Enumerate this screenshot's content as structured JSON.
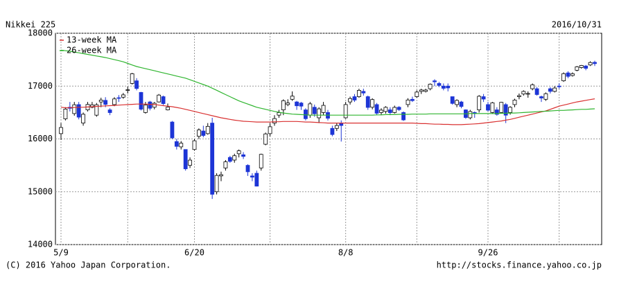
{
  "chart_data": {
    "type": "candlestick",
    "title": "Nikkei 225",
    "date": "2016/10/31",
    "footer_left": "(C) 2016 Yahoo Japan Corporation.",
    "footer_right": "http://stocks.finance.yahoo.co.jp",
    "categories": [
      "5/9",
      null,
      null,
      null,
      null,
      null,
      null,
      null,
      null,
      null,
      null,
      null,
      null,
      null,
      null,
      null,
      null,
      null,
      null,
      null,
      null,
      null,
      null,
      null,
      null,
      null,
      null,
      null,
      null,
      null,
      "6/20",
      null,
      null,
      null,
      null,
      null,
      null,
      null,
      null,
      null,
      null,
      null,
      null,
      null,
      null,
      null,
      null,
      null,
      null,
      null,
      null,
      null,
      null,
      null,
      null,
      null,
      null,
      null,
      null,
      null,
      null,
      null,
      null,
      null,
      "8/8",
      null,
      null,
      null,
      null,
      null,
      null,
      null,
      null,
      null,
      null,
      null,
      null,
      null,
      null,
      null,
      null,
      null,
      null,
      null,
      null,
      null,
      null,
      null,
      null,
      null,
      null,
      null,
      null,
      null,
      null,
      null,
      "9/26",
      null,
      null,
      null,
      null,
      null,
      null,
      null,
      null,
      null,
      null,
      null,
      null,
      null,
      null,
      null,
      null,
      null,
      null,
      null,
      null,
      null,
      null,
      null,
      null
    ],
    "open": [
      16100,
      16380,
      16600,
      16480,
      16650,
      16300,
      16550,
      16600,
      16450,
      16700,
      16730,
      16550,
      16650,
      16780,
      16790,
      16920,
      17050,
      17100,
      16880,
      16500,
      16700,
      16600,
      16700,
      16800,
      16550,
      16320,
      15950,
      15850,
      15800,
      15500,
      15800,
      16050,
      16150,
      16100,
      16300,
      15000,
      15300,
      15450,
      15650,
      15600,
      15720,
      15700,
      15500,
      15300,
      15350,
      15450,
      15900,
      16100,
      16300,
      16450,
      16550,
      16650,
      16750,
      16700,
      16680,
      16550,
      16450,
      16600,
      16400,
      16500,
      16500,
      16200,
      16200,
      16300,
      16400,
      16700,
      16800,
      16800,
      16900,
      16800,
      16600,
      16650,
      16500,
      16520,
      16550,
      16500,
      16600,
      16500,
      16650,
      16750,
      16800,
      16900,
      16900,
      16950,
      17100,
      17050,
      17000,
      17000,
      16800,
      16650,
      16700,
      16550,
      16400,
      16500,
      16550,
      16800,
      16650,
      16500,
      16550,
      16500,
      16650,
      16500,
      16650,
      16800,
      16850,
      16850,
      16950,
      16950,
      16800,
      16750,
      16950,
      16900,
      17000,
      17100,
      17250,
      17200,
      17300,
      17350,
      17380,
      17400,
      17450
    ],
    "high": [
      16300,
      16600,
      16700,
      16700,
      16700,
      16500,
      16700,
      16700,
      16680,
      16780,
      16790,
      16580,
      16790,
      16830,
      16870,
      16990,
      17250,
      17150,
      16890,
      16700,
      16720,
      16700,
      16850,
      16820,
      16670,
      16340,
      16000,
      15960,
      15800,
      15650,
      16000,
      16200,
      16250,
      16300,
      16400,
      15350,
      15380,
      15600,
      15680,
      15720,
      15800,
      15750,
      15520,
      15350,
      15400,
      15720,
      16120,
      16300,
      16450,
      16550,
      16750,
      16750,
      16900,
      16720,
      16700,
      16580,
      16700,
      16650,
      16600,
      16700,
      16550,
      16250,
      16300,
      16350,
      16700,
      16800,
      16850,
      16950,
      16950,
      16820,
      16770,
      16680,
      16580,
      16620,
      16600,
      16630,
      16620,
      16520,
      16770,
      16800,
      16920,
      16950,
      16950,
      17050,
      17130,
      17080,
      17050,
      17050,
      16800,
      16750,
      16720,
      16560,
      16550,
      16520,
      16830,
      16850,
      16700,
      16700,
      16600,
      16700,
      16680,
      16620,
      16760,
      16860,
      16920,
      16900,
      17050,
      16980,
      16820,
      16880,
      16980,
      17000,
      17050,
      17260,
      17280,
      17260,
      17380,
      17400,
      17400,
      17470,
      17480
    ],
    "low": [
      15980,
      16350,
      16520,
      16440,
      16370,
      16250,
      16520,
      16580,
      16420,
      16600,
      16600,
      16450,
      16620,
      16700,
      16760,
      16860,
      17030,
      16920,
      16540,
      16480,
      16540,
      16560,
      16690,
      16640,
      16540,
      16000,
      15800,
      15800,
      15400,
      15450,
      15780,
      16000,
      16030,
      16080,
      14864,
      14950,
      15200,
      15400,
      15550,
      15550,
      15650,
      15620,
      15300,
      15200,
      15100,
      15400,
      15880,
      16050,
      16250,
      16400,
      16450,
      16620,
      16720,
      16550,
      16550,
      16350,
      16400,
      16420,
      16300,
      16450,
      16350,
      16050,
      16150,
      15950,
      16380,
      16650,
      16700,
      16780,
      16820,
      16550,
      16560,
      16450,
      16450,
      16480,
      16450,
      16480,
      16530,
      16340,
      16600,
      16700,
      16780,
      16850,
      16880,
      16920,
      17000,
      16980,
      16920,
      16900,
      16650,
      16600,
      16580,
      16380,
      16370,
      16400,
      16500,
      16700,
      16520,
      16480,
      16440,
      16480,
      16300,
      16460,
      16600,
      16750,
      16820,
      16780,
      16920,
      16820,
      16700,
      16720,
      16860,
      16880,
      16950,
      17080,
      17150,
      17180,
      17280,
      17330,
      17300,
      17380,
      17380
    ],
    "close": [
      16216,
      16565,
      16579,
      16646,
      16412,
      16467,
      16653,
      16644,
      16646,
      16736,
      16654,
      16498,
      16757,
      16772,
      16834,
      16931,
      17234,
      16955,
      16562,
      16642,
      16580,
      16675,
      16830,
      16668,
      16601,
      16019,
      15859,
      15919,
      15434,
      15599,
      15965,
      16169,
      16065,
      16238,
      14952,
      15309,
      15323,
      15566,
      15575,
      15682,
      15775,
      15669,
      15378,
      15276,
      15106,
      15708,
      16095,
      16231,
      16385,
      16497,
      16723,
      16681,
      16810,
      16627,
      16620,
      16383,
      16664,
      16476,
      16569,
      16635,
      16391,
      16083,
      16254,
      16254,
      16650,
      16764,
      16735,
      16919,
      16869,
      16596,
      16745,
      16486,
      16545,
      16598,
      16497,
      16597,
      16555,
      16360,
      16737,
      16725,
      16887,
      16926,
      16925,
      17037,
      17081,
      17012,
      16958,
      16965,
      16672,
      16729,
      16614,
      16405,
      16519,
      16492,
      16807,
      16754,
      16544,
      16683,
      16465,
      16693,
      16449,
      16599,
      16735,
      16819,
      16899,
      16860,
      17024,
      16840,
      16774,
      16856,
      16900,
      16963,
      16998,
      17235,
      17184,
      17234,
      17365,
      17391,
      17336,
      17446,
      17425
    ],
    "up_color": "#ffffff",
    "down_color": "#1d35d6",
    "series": [
      {
        "name": "13-week MA",
        "color": "#d93030",
        "values": [
          16600,
          16590,
          16590,
          16595,
          16600,
          16600,
          16605,
          16610,
          16615,
          16620,
          16625,
          16630,
          16635,
          16640,
          16645,
          16650,
          16655,
          16660,
          16660,
          16660,
          16655,
          16650,
          16640,
          16630,
          16620,
          16610,
          16595,
          16580,
          16560,
          16540,
          16520,
          16500,
          16480,
          16460,
          16440,
          16420,
          16400,
          16385,
          16370,
          16355,
          16345,
          16335,
          16330,
          16325,
          16320,
          16320,
          16320,
          16320,
          16325,
          16325,
          16330,
          16330,
          16330,
          16330,
          16325,
          16320,
          16320,
          16315,
          16310,
          16305,
          16300,
          16300,
          16300,
          16300,
          16300,
          16300,
          16300,
          16300,
          16300,
          16300,
          16300,
          16300,
          16300,
          16300,
          16300,
          16300,
          16300,
          16300,
          16300,
          16300,
          16295,
          16290,
          16290,
          16285,
          16280,
          16280,
          16275,
          16275,
          16270,
          16270,
          16270,
          16275,
          16280,
          16285,
          16290,
          16300,
          16310,
          16320,
          16330,
          16340,
          16355,
          16370,
          16390,
          16410,
          16430,
          16450,
          16470,
          16490,
          16510,
          16530,
          16560,
          16590,
          16620,
          16640,
          16660,
          16680,
          16700,
          16715,
          16730,
          16745,
          16760
        ]
      },
      {
        "name": "26-week MA",
        "color": "#2fb52f",
        "values": [
          17680,
          17670,
          17660,
          17645,
          17630,
          17615,
          17600,
          17585,
          17570,
          17555,
          17540,
          17520,
          17500,
          17480,
          17460,
          17430,
          17400,
          17370,
          17350,
          17330,
          17310,
          17290,
          17270,
          17250,
          17230,
          17210,
          17190,
          17170,
          17150,
          17120,
          17090,
          17060,
          17030,
          17000,
          16960,
          16920,
          16880,
          16840,
          16800,
          16760,
          16720,
          16690,
          16660,
          16630,
          16600,
          16580,
          16560,
          16540,
          16520,
          16505,
          16490,
          16480,
          16470,
          16465,
          16460,
          16455,
          16450,
          16450,
          16450,
          16450,
          16450,
          16450,
          16450,
          16450,
          16450,
          16450,
          16450,
          16450,
          16450,
          16450,
          16450,
          16455,
          16455,
          16460,
          16460,
          16460,
          16465,
          16465,
          16465,
          16470,
          16470,
          16470,
          16470,
          16475,
          16475,
          16475,
          16475,
          16475,
          16475,
          16475,
          16475,
          16475,
          16480,
          16480,
          16480,
          16480,
          16480,
          16480,
          16480,
          16485,
          16485,
          16490,
          16490,
          16495,
          16500,
          16505,
          16510,
          16515,
          16520,
          16525,
          16530,
          16535,
          16540,
          16540,
          16545,
          16550,
          16555,
          16560,
          16560,
          16565,
          16570
        ]
      }
    ],
    "ylim": [
      14000,
      18000
    ],
    "yticks": [
      14000,
      15000,
      16000,
      17000,
      18000
    ],
    "grid": true,
    "legend": "top-left"
  }
}
